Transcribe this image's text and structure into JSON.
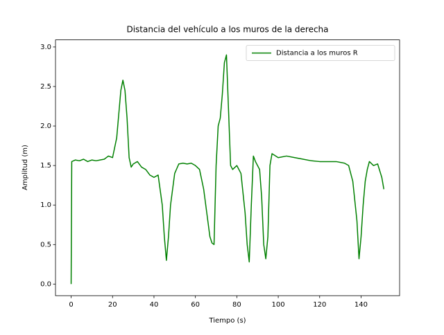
{
  "chart_data": {
    "type": "line",
    "title": "Distancia del vehículo a los muros de la derecha",
    "x_label": "Tiempo (s)",
    "y_label": "Amplitud (m)",
    "x": [
      0,
      0.3,
      2,
      4,
      6,
      8,
      10,
      12,
      14,
      16,
      18,
      20,
      22,
      24,
      25,
      26,
      27,
      28,
      29,
      30,
      32,
      34,
      36,
      38,
      40,
      42,
      44,
      45,
      46,
      47,
      48,
      50,
      52,
      54,
      56,
      58,
      60,
      62,
      64,
      66,
      67,
      68,
      69,
      70,
      71,
      72,
      73,
      74,
      75,
      76,
      77,
      78,
      80,
      82,
      84,
      85,
      86,
      87,
      88,
      89,
      90,
      91,
      92,
      93,
      94,
      95,
      96,
      97,
      100,
      104,
      108,
      112,
      116,
      120,
      124,
      128,
      132,
      134,
      136,
      138,
      139,
      140,
      141,
      142,
      143,
      144,
      146,
      148,
      150,
      151
    ],
    "series": [
      {
        "name": "Distancia a los muros R",
        "color": "#008000",
        "values": [
          0,
          1.55,
          1.57,
          1.56,
          1.58,
          1.55,
          1.57,
          1.56,
          1.57,
          1.58,
          1.62,
          1.6,
          1.85,
          2.45,
          2.58,
          2.45,
          2.1,
          1.6,
          1.48,
          1.52,
          1.55,
          1.48,
          1.45,
          1.38,
          1.35,
          1.38,
          1.0,
          0.6,
          0.3,
          0.6,
          1.0,
          1.4,
          1.52,
          1.53,
          1.52,
          1.53,
          1.5,
          1.45,
          1.2,
          0.8,
          0.6,
          0.52,
          0.5,
          1.5,
          2.0,
          2.1,
          2.4,
          2.8,
          2.9,
          2.2,
          1.5,
          1.45,
          1.5,
          1.4,
          0.9,
          0.5,
          0.28,
          1.0,
          1.62,
          1.55,
          1.5,
          1.45,
          1.1,
          0.5,
          0.32,
          0.6,
          1.5,
          1.65,
          1.6,
          1.62,
          1.6,
          1.58,
          1.56,
          1.55,
          1.55,
          1.55,
          1.53,
          1.5,
          1.3,
          0.8,
          0.32,
          0.6,
          1.0,
          1.3,
          1.45,
          1.55,
          1.5,
          1.52,
          1.35,
          1.2
        ]
      }
    ],
    "xlim": [
      -7.55,
      158.6
    ],
    "ylim": [
      -0.147,
      3.09
    ],
    "xticks": [
      0,
      20,
      40,
      60,
      80,
      100,
      120,
      140
    ],
    "yticks": [
      {
        "value": 0,
        "label": "0.0"
      },
      0.5,
      {
        "value": 1,
        "label": "1.0"
      },
      1.5,
      {
        "value": 2,
        "label": "2.0"
      },
      2.5,
      {
        "value": 3,
        "label": "3.0"
      }
    ],
    "legend": "upper right",
    "grid": false
  }
}
